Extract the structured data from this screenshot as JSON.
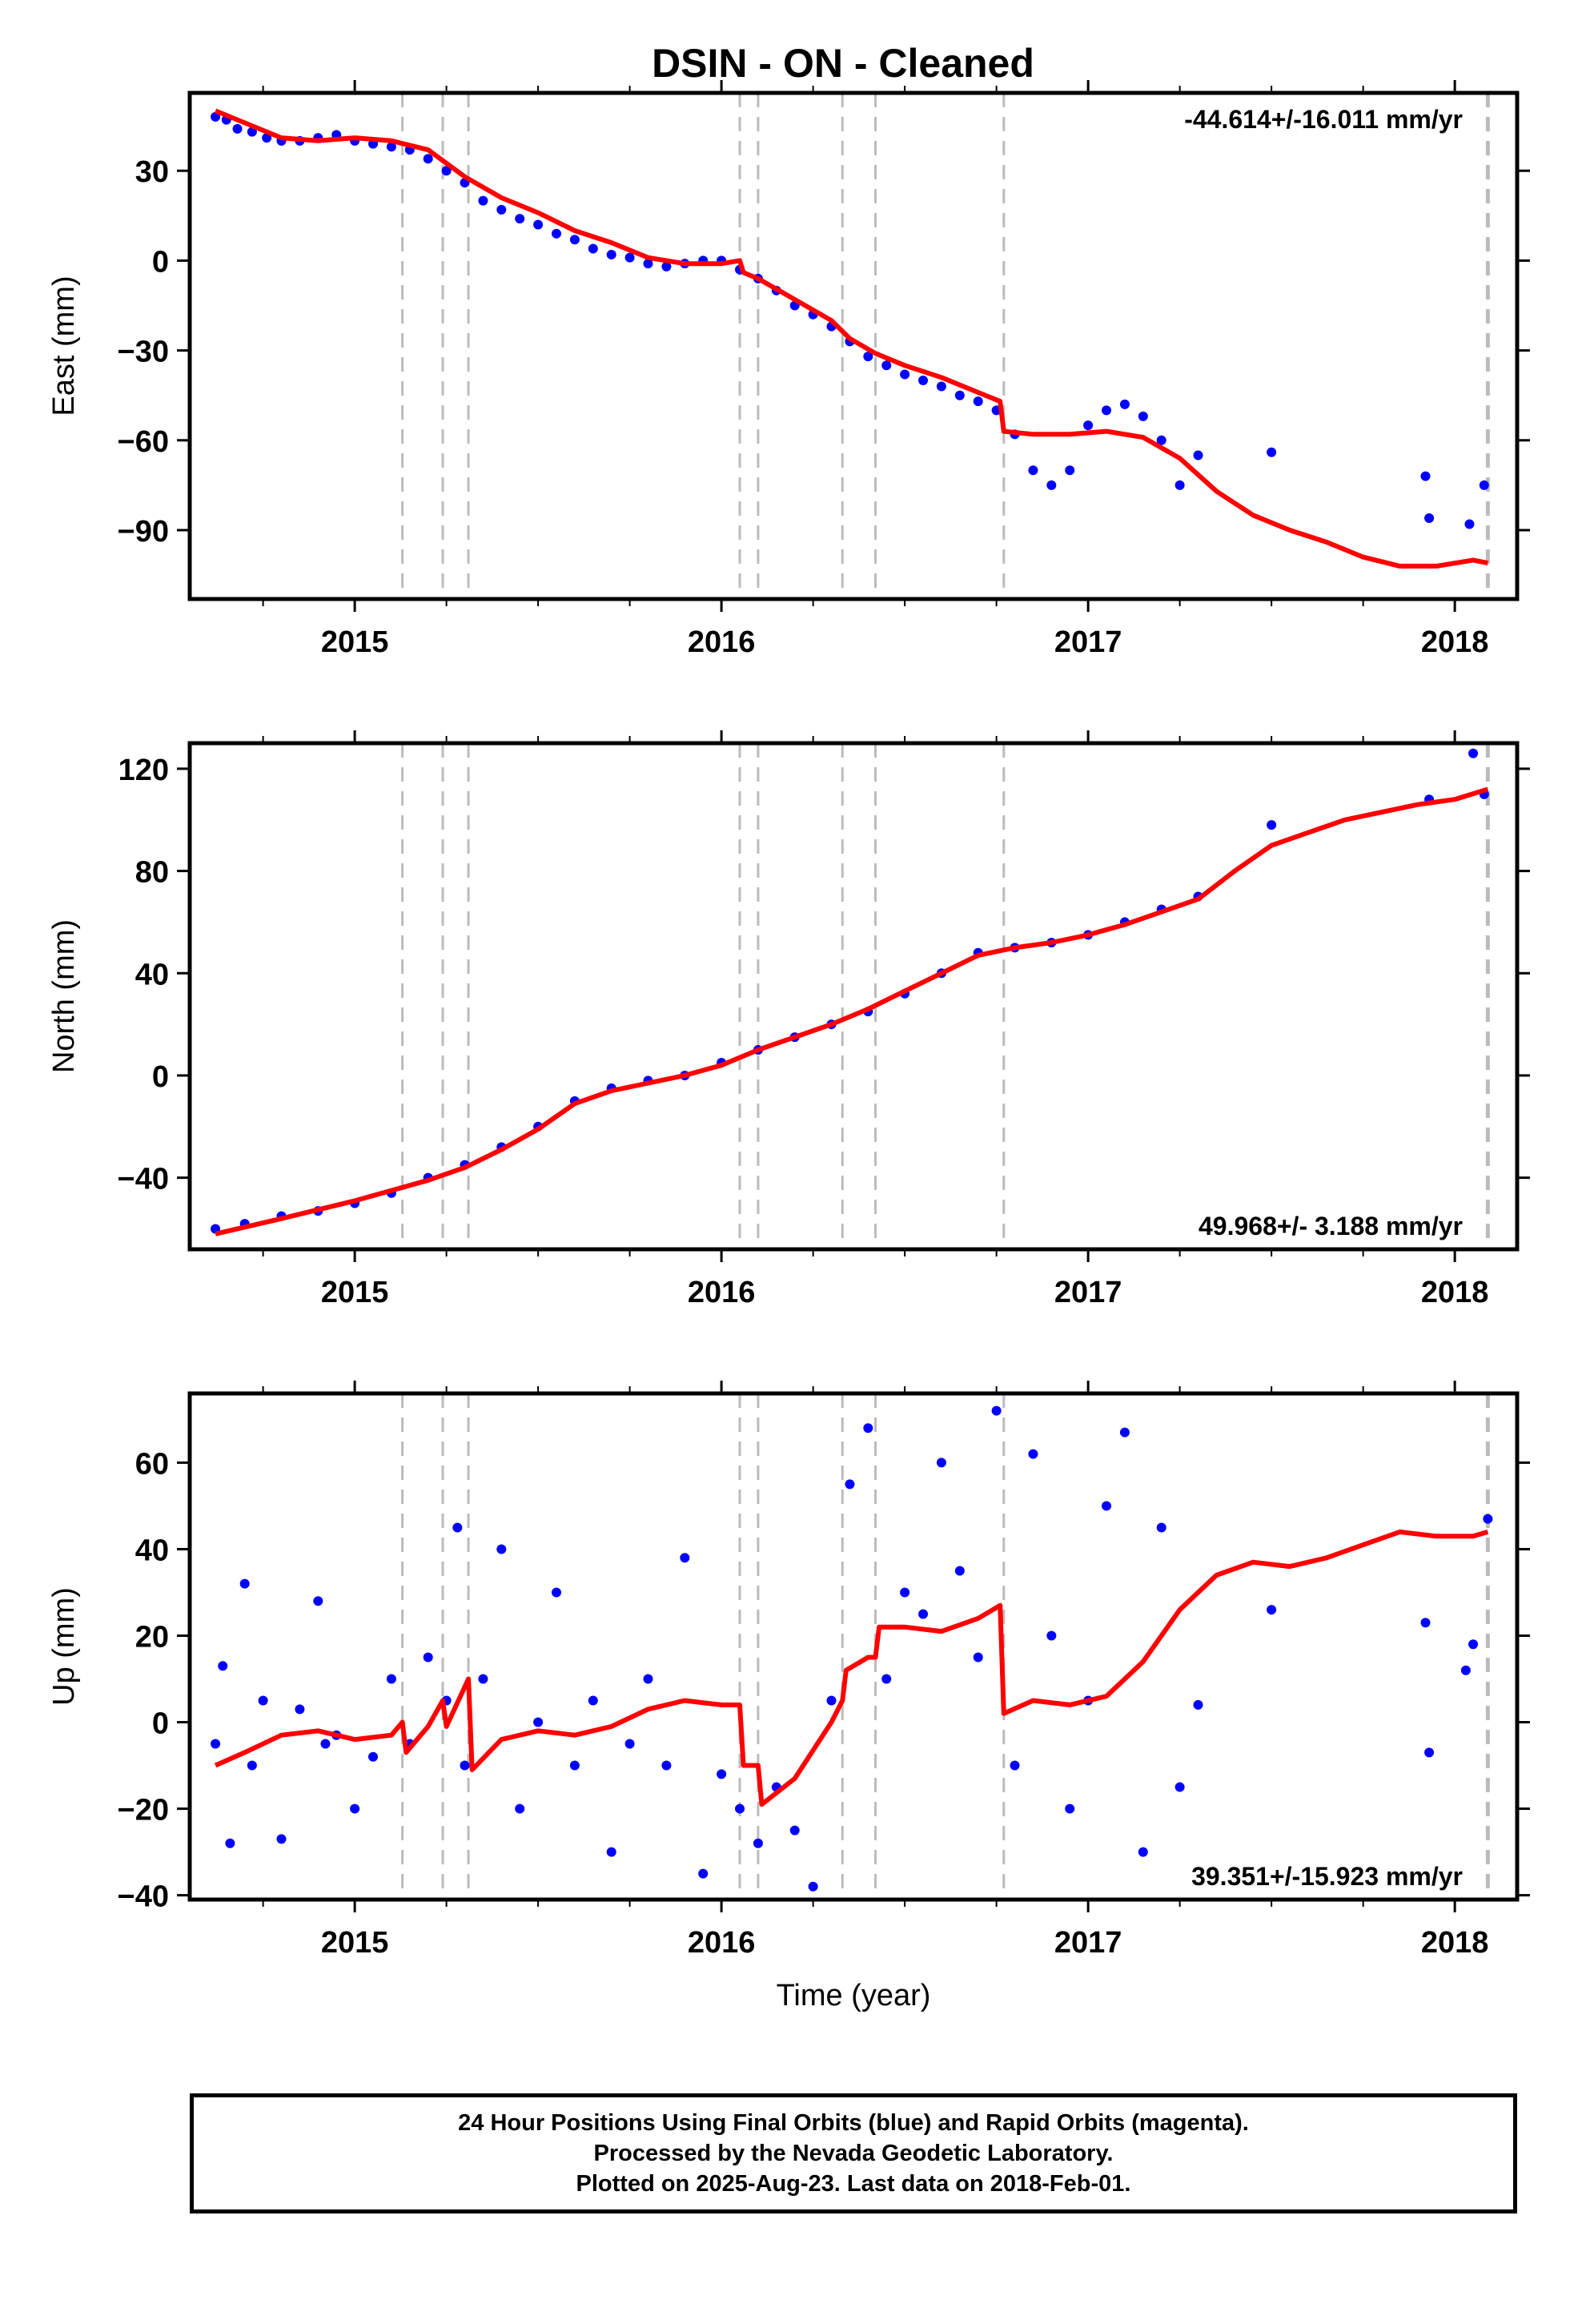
{
  "title": "DSIN  - ON - Cleaned",
  "footer": {
    "line1": "24 Hour Positions Using Final Orbits (blue) and Rapid Orbits (magenta).",
    "line2": "Processed by the Nevada Geodetic Laboratory.",
    "line3": "Plotted on 2025-Aug-23. Last data on 2018-Feb-01."
  },
  "chart_data": [
    {
      "type": "scatter",
      "title": "DSIN  - ON - Cleaned",
      "ylabel": "East (mm)",
      "xlabel": "",
      "xlim": [
        2014.55,
        2018.17
      ],
      "ylim": [
        -113,
        56
      ],
      "xticks": [
        2015,
        2016,
        2017,
        2018
      ],
      "yticks": [
        -90,
        -60,
        -30,
        0,
        30
      ],
      "rate_label": "-44.614+/-16.011 mm/yr",
      "rate_position": "top-right",
      "step_lines": [
        2015.13,
        2015.24,
        2015.31,
        2016.05,
        2016.1,
        2016.33,
        2016.42,
        2016.77,
        2018.09
      ],
      "series": [
        {
          "type": "scatter",
          "color": "#0000ff",
          "x": [
            2014.62,
            2014.65,
            2014.68,
            2014.72,
            2014.76,
            2014.8,
            2014.85,
            2014.9,
            2014.95,
            2015.0,
            2015.05,
            2015.1,
            2015.15,
            2015.2,
            2015.25,
            2015.3,
            2015.35,
            2015.4,
            2015.45,
            2015.5,
            2015.55,
            2015.6,
            2015.65,
            2015.7,
            2015.75,
            2015.8,
            2015.85,
            2015.9,
            2015.95,
            2016.0,
            2016.05,
            2016.1,
            2016.15,
            2016.2,
            2016.25,
            2016.3,
            2016.35,
            2016.4,
            2016.45,
            2016.5,
            2016.55,
            2016.6,
            2016.65,
            2016.7,
            2016.75,
            2016.8,
            2016.85,
            2016.9,
            2016.95,
            2017.0,
            2017.05,
            2017.1,
            2017.15,
            2017.2,
            2017.25,
            2017.3,
            2017.5,
            2017.92,
            2017.93,
            2018.04,
            2018.08
          ],
          "y": [
            48,
            47,
            44,
            43,
            41,
            40,
            40,
            41,
            42,
            40,
            39,
            38,
            37,
            34,
            30,
            26,
            20,
            17,
            14,
            12,
            9,
            7,
            4,
            2,
            1,
            -1,
            -2,
            -1,
            0,
            0,
            -3,
            -6,
            -10,
            -15,
            -18,
            -22,
            -27,
            -32,
            -35,
            -38,
            -40,
            -42,
            -45,
            -47,
            -50,
            -58,
            -70,
            -75,
            -70,
            -55,
            -50,
            -48,
            -52,
            -60,
            -75,
            -65,
            -64,
            -72,
            -86,
            -88,
            -75
          ]
        },
        {
          "type": "line",
          "color": "#ff0000",
          "x": [
            2014.62,
            2014.7,
            2014.8,
            2014.9,
            2015.0,
            2015.1,
            2015.2,
            2015.3,
            2015.4,
            2015.5,
            2015.6,
            2015.7,
            2015.8,
            2015.9,
            2016.0,
            2016.05,
            2016.06,
            2016.1,
            2016.2,
            2016.3,
            2016.35,
            2016.42,
            2016.5,
            2016.6,
            2016.7,
            2016.76,
            2016.77,
            2016.85,
            2016.95,
            2017.05,
            2017.15,
            2017.25,
            2017.35,
            2017.45,
            2017.55,
            2017.65,
            2017.75,
            2017.85,
            2017.95,
            2018.05,
            2018.09
          ],
          "y": [
            50,
            46,
            41,
            40,
            41,
            40,
            37,
            28,
            21,
            16,
            10,
            6,
            1,
            -1,
            -1,
            0,
            -4,
            -6,
            -13,
            -20,
            -26,
            -31,
            -35,
            -39,
            -44,
            -47,
            -57,
            -58,
            -58,
            -57,
            -59,
            -66,
            -77,
            -85,
            -90,
            -94,
            -99,
            -102,
            -102,
            -100,
            -101
          ]
        }
      ]
    },
    {
      "type": "scatter",
      "title": "",
      "ylabel": "North (mm)",
      "xlabel": "",
      "xlim": [
        2014.55,
        2018.17
      ],
      "ylim": [
        -68,
        130
      ],
      "xticks": [
        2015,
        2016,
        2017,
        2018
      ],
      "yticks": [
        -40,
        0,
        40,
        80,
        120
      ],
      "rate_label": "49.968+/- 3.188 mm/yr",
      "rate_position": "bottom-right",
      "step_lines": [
        2015.13,
        2015.24,
        2015.31,
        2016.05,
        2016.1,
        2016.33,
        2016.42,
        2016.77,
        2018.09
      ],
      "series": [
        {
          "type": "scatter",
          "color": "#0000ff",
          "x": [
            2014.62,
            2014.7,
            2014.8,
            2014.9,
            2015.0,
            2015.1,
            2015.2,
            2015.3,
            2015.4,
            2015.5,
            2015.6,
            2015.7,
            2015.8,
            2015.9,
            2016.0,
            2016.1,
            2016.2,
            2016.3,
            2016.4,
            2016.5,
            2016.6,
            2016.7,
            2016.8,
            2016.9,
            2017.0,
            2017.1,
            2017.2,
            2017.3,
            2017.5,
            2017.93,
            2018.05,
            2018.08
          ],
          "y": [
            -60,
            -58,
            -55,
            -53,
            -50,
            -46,
            -40,
            -35,
            -28,
            -20,
            -10,
            -5,
            -2,
            0,
            5,
            10,
            15,
            20,
            25,
            32,
            40,
            48,
            50,
            52,
            55,
            60,
            65,
            70,
            98,
            108,
            126,
            110
          ]
        },
        {
          "type": "line",
          "color": "#ff0000",
          "x": [
            2014.62,
            2014.8,
            2015.0,
            2015.2,
            2015.3,
            2015.4,
            2015.5,
            2015.6,
            2015.7,
            2015.8,
            2015.9,
            2016.0,
            2016.1,
            2016.2,
            2016.3,
            2016.4,
            2016.5,
            2016.6,
            2016.7,
            2016.8,
            2016.9,
            2017.0,
            2017.1,
            2017.2,
            2017.3,
            2017.4,
            2017.5,
            2017.6,
            2017.7,
            2017.8,
            2017.9,
            2018.0,
            2018.09
          ],
          "y": [
            -62,
            -56,
            -49,
            -41,
            -36,
            -29,
            -21,
            -11,
            -6,
            -3,
            0,
            4,
            10,
            15,
            20,
            26,
            33,
            40,
            47,
            50,
            52,
            55,
            59,
            64,
            69,
            80,
            90,
            95,
            100,
            103,
            106,
            108,
            112
          ]
        }
      ]
    },
    {
      "type": "scatter",
      "title": "",
      "ylabel": "Up (mm)",
      "xlabel": "Time (year)",
      "xlim": [
        2014.55,
        2018.17
      ],
      "ylim": [
        -41,
        76
      ],
      "xticks": [
        2015,
        2016,
        2017,
        2018
      ],
      "yticks": [
        -40,
        -20,
        0,
        20,
        40,
        60
      ],
      "rate_label": "39.351+/-15.923 mm/yr",
      "rate_position": "bottom-right",
      "step_lines": [
        2015.13,
        2015.24,
        2015.31,
        2016.05,
        2016.1,
        2016.33,
        2016.42,
        2016.77,
        2018.09
      ],
      "series": [
        {
          "type": "scatter",
          "color": "#0000ff",
          "x": [
            2014.62,
            2014.64,
            2014.66,
            2014.7,
            2014.72,
            2014.75,
            2014.8,
            2014.85,
            2014.9,
            2014.92,
            2014.95,
            2015.0,
            2015.05,
            2015.1,
            2015.15,
            2015.2,
            2015.25,
            2015.28,
            2015.3,
            2015.35,
            2015.4,
            2015.45,
            2015.5,
            2015.55,
            2015.6,
            2015.65,
            2015.7,
            2015.75,
            2015.8,
            2015.85,
            2015.9,
            2015.95,
            2016.0,
            2016.05,
            2016.1,
            2016.15,
            2016.2,
            2016.25,
            2016.3,
            2016.35,
            2016.4,
            2016.45,
            2016.5,
            2016.55,
            2016.6,
            2016.65,
            2016.7,
            2016.75,
            2016.8,
            2016.85,
            2016.9,
            2016.95,
            2017.0,
            2017.05,
            2017.1,
            2017.15,
            2017.2,
            2017.25,
            2017.3,
            2017.5,
            2017.92,
            2017.93,
            2018.03,
            2018.05,
            2018.09
          ],
          "y": [
            -5,
            13,
            -28,
            32,
            -10,
            5,
            -27,
            3,
            28,
            -5,
            -3,
            -20,
            -8,
            10,
            -5,
            15,
            5,
            45,
            -10,
            10,
            40,
            -20,
            0,
            30,
            -10,
            5,
            -30,
            -5,
            10,
            -10,
            38,
            -35,
            -12,
            -20,
            -28,
            -15,
            -25,
            -38,
            5,
            55,
            68,
            10,
            30,
            25,
            60,
            35,
            15,
            72,
            -10,
            62,
            20,
            -20,
            5,
            50,
            67,
            -30,
            45,
            -15,
            4,
            26,
            23,
            -7,
            12,
            18,
            47
          ]
        },
        {
          "type": "line",
          "color": "#ff0000",
          "x": [
            2014.62,
            2014.7,
            2014.8,
            2014.9,
            2015.0,
            2015.1,
            2015.13,
            2015.14,
            2015.2,
            2015.24,
            2015.25,
            2015.31,
            2015.32,
            2015.4,
            2015.5,
            2015.6,
            2015.7,
            2015.8,
            2015.9,
            2016.0,
            2016.05,
            2016.06,
            2016.1,
            2016.11,
            2016.2,
            2016.3,
            2016.33,
            2016.34,
            2016.4,
            2016.42,
            2016.43,
            2016.5,
            2016.6,
            2016.7,
            2016.76,
            2016.77,
            2016.85,
            2016.95,
            2017.05,
            2017.15,
            2017.25,
            2017.35,
            2017.45,
            2017.55,
            2017.65,
            2017.75,
            2017.85,
            2017.95,
            2018.05,
            2018.09
          ],
          "y": [
            -10,
            -7,
            -3,
            -2,
            -4,
            -3,
            0,
            -7,
            -1,
            5,
            -1,
            10,
            -11,
            -4,
            -2,
            -3,
            -1,
            3,
            5,
            4,
            4,
            -10,
            -10,
            -19,
            -13,
            0,
            5,
            12,
            15,
            15,
            22,
            22,
            21,
            24,
            27,
            2,
            5,
            4,
            6,
            14,
            26,
            34,
            37,
            36,
            38,
            41,
            44,
            43,
            43,
            44
          ]
        }
      ]
    }
  ]
}
